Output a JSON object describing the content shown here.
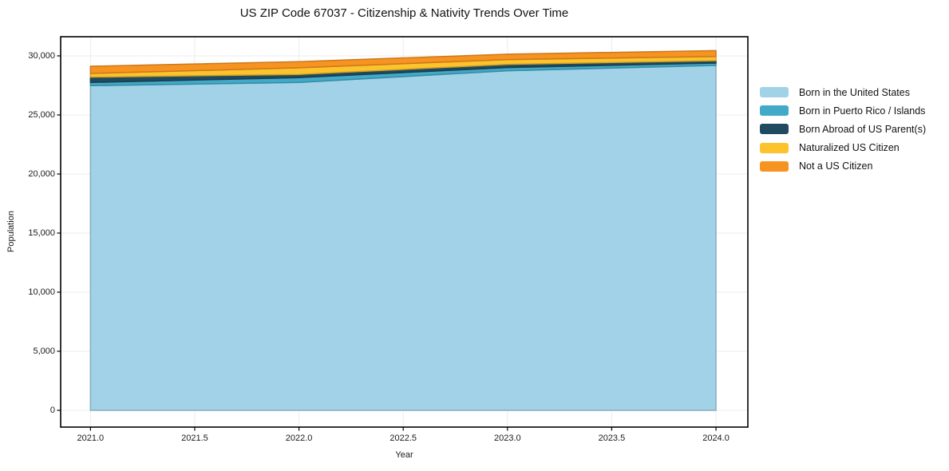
{
  "chart_data": {
    "type": "area",
    "stacked": true,
    "title": "US ZIP Code 67037 - Citizenship & Nativity Trends Over Time",
    "xlabel": "Year",
    "ylabel": "Population",
    "x": [
      2021,
      2022,
      2023,
      2024
    ],
    "series": [
      {
        "name": "Born in the United States",
        "color": "#A2D2E8",
        "values": [
          27480,
          27750,
          28740,
          29190
        ]
      },
      {
        "name": "Born in Puerto Rico / Islands",
        "color": "#41AAC8",
        "values": [
          270,
          410,
          270,
          200
        ]
      },
      {
        "name": "Born Abroad of US Parent(s)",
        "color": "#1F4A5F",
        "values": [
          450,
          270,
          270,
          200
        ]
      },
      {
        "name": "Naturalized US Citizen",
        "color": "#FCC32D",
        "values": [
          310,
          560,
          410,
          360
        ]
      },
      {
        "name": "Not a US Citizen",
        "color": "#F79421",
        "values": [
          610,
          520,
          450,
          500
        ]
      }
    ],
    "totals": [
      29120,
      29510,
      30140,
      30450
    ],
    "xticks": [
      2021.0,
      2021.5,
      2022.0,
      2022.5,
      2023.0,
      2023.5,
      2024.0
    ],
    "xtick_labels": [
      "2021.0",
      "2021.5",
      "2022.0",
      "2022.5",
      "2023.0",
      "2023.5",
      "2024.0"
    ],
    "yticks": [
      0,
      5000,
      10000,
      15000,
      20000,
      25000,
      30000
    ],
    "ytick_labels": [
      "0",
      "5,000",
      "10,000",
      "15,000",
      "20,000",
      "25,000",
      "30,000"
    ],
    "xlim": [
      2020.857,
      2024.153
    ],
    "ylim": [
      -1420,
      31620
    ],
    "grid": true,
    "legend_position": "right-outside",
    "grid_color": "#ececec",
    "spine_color": "#000000",
    "background_color": "#ffffff"
  }
}
